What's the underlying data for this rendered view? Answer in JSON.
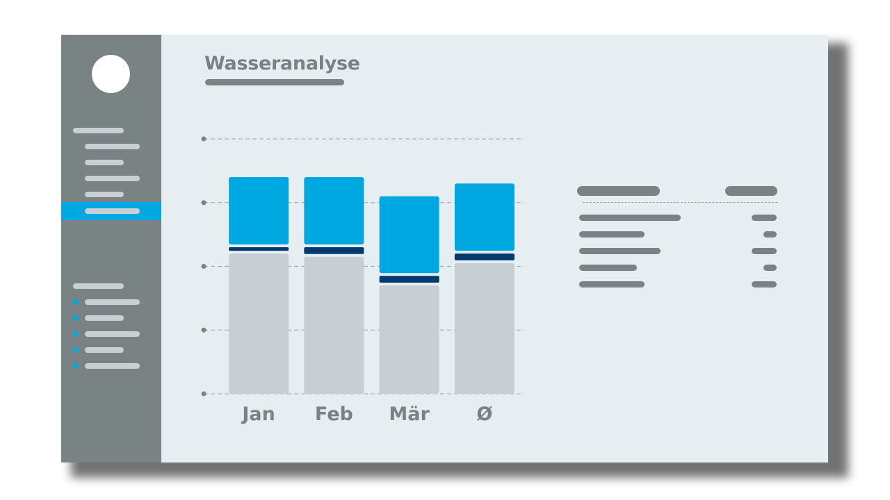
{
  "page": {
    "title": "Wasseranalyse"
  },
  "colors": {
    "sidebar": "#7a8384",
    "background": "#e6eef1",
    "accent": "#00a8e1",
    "dark_blue": "#003a70",
    "base_grey": "#c7cfd5"
  },
  "sidebar": {
    "avatar": "avatar",
    "active_item": 6,
    "top_group_count": 6,
    "bottom_group_count": 6
  },
  "chart_data": {
    "type": "bar",
    "stacked": true,
    "categories": [
      "Jan",
      "Feb",
      "Mär",
      "Ø"
    ],
    "series": [
      {
        "color": "#c7cfd5",
        "values": [
          2.2,
          2.15,
          1.7,
          2.05
        ]
      },
      {
        "color": "#003a70",
        "values": [
          0.1,
          0.15,
          0.15,
          0.15
        ]
      },
      {
        "color": "#00a8e1",
        "values": [
          1.1,
          1.1,
          1.25,
          1.1
        ]
      }
    ],
    "ylim": [
      0,
      4
    ],
    "yticks": [
      0,
      1,
      2,
      3,
      4
    ],
    "grid": true,
    "title": "",
    "xlabel": "",
    "ylabel": ""
  }
}
